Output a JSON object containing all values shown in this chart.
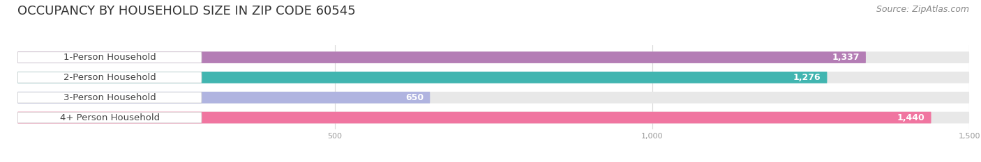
{
  "title": "OCCUPANCY BY HOUSEHOLD SIZE IN ZIP CODE 60545",
  "source": "Source: ZipAtlas.com",
  "categories": [
    "1-Person Household",
    "2-Person Household",
    "3-Person Household",
    "4+ Person Household"
  ],
  "values": [
    1337,
    1276,
    650,
    1440
  ],
  "bar_colors": [
    "#b47db5",
    "#41b5b0",
    "#b0b4e0",
    "#f075a0"
  ],
  "bar_bg_color": "#e8e8e8",
  "label_bg_color": "#ffffff",
  "xlim": [
    0,
    1500
  ],
  "xticks": [
    500,
    1000,
    1500
  ],
  "title_fontsize": 13,
  "source_fontsize": 9,
  "label_fontsize": 9.5,
  "value_fontsize": 9,
  "bar_height": 0.58,
  "background_color": "#ffffff",
  "label_text_color": "#444444",
  "value_text_color": "#ffffff",
  "tick_color": "#999999",
  "grid_color": "#d8d8d8"
}
